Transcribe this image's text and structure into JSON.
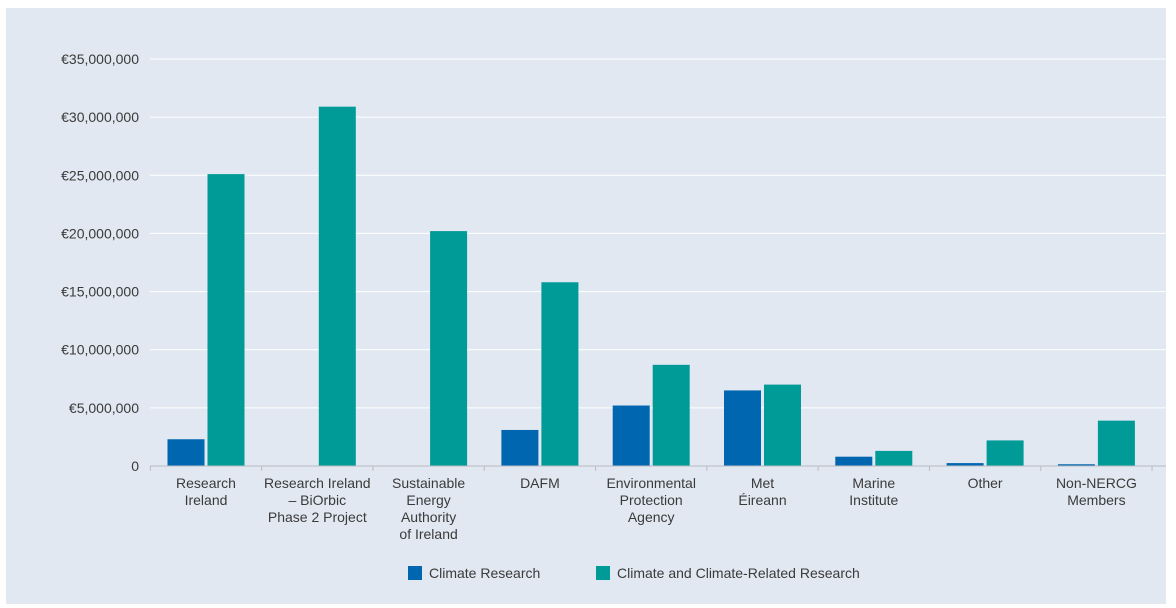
{
  "chart_data": {
    "type": "bar",
    "title": "",
    "xlabel": "",
    "ylabel": "",
    "ylim": [
      0,
      35000000
    ],
    "yticks": [
      0,
      5000000,
      10000000,
      15000000,
      20000000,
      25000000,
      30000000,
      35000000
    ],
    "ytick_labels": [
      "0",
      "€5,000,000",
      "€10,000,000",
      "€15,000,000",
      "€20,000,000",
      "€25,000,000",
      "€30,000,000",
      "€35,000,000"
    ],
    "grid": true,
    "legend_position": "bottom-center",
    "categories": [
      [
        "Research",
        "Ireland"
      ],
      [
        "Research Ireland",
        "– BiOrbic",
        "Phase 2 Project"
      ],
      [
        "Sustainable",
        "Energy",
        "Authority",
        "of Ireland"
      ],
      [
        "DAFM"
      ],
      [
        "Environmental",
        "Protection",
        "Agency"
      ],
      [
        "Met",
        "Éireann"
      ],
      [
        "Marine",
        "Institute"
      ],
      [
        "Other"
      ],
      [
        "Non-NERCG",
        "Members"
      ]
    ],
    "series": [
      {
        "name": "Climate Research",
        "color": "#0066b0",
        "values": [
          2300000,
          0,
          0,
          3100000,
          5200000,
          6500000,
          800000,
          250000,
          150000
        ]
      },
      {
        "name": "Climate and Climate-Related Research",
        "color": "#009a97",
        "values": [
          25100000,
          30900000,
          20200000,
          15800000,
          8700000,
          7000000,
          1300000,
          2200000,
          3900000
        ]
      }
    ]
  }
}
